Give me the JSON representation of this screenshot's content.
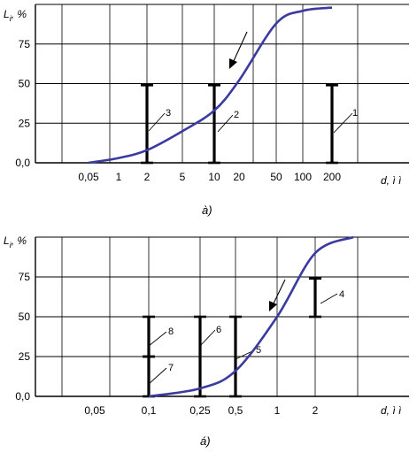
{
  "chart_data": [
    {
      "type": "line",
      "panel_label": "à)",
      "ylabel": "L",
      "ylabel_sub": "i",
      "ylabel_unit": ", %",
      "xlabel": "d, ì ì",
      "y_ticks": [
        "0,0",
        "25",
        "50",
        "75"
      ],
      "x_ticks": [
        "0,05",
        "1",
        "2",
        "5",
        "10",
        "20",
        "50",
        "100",
        "200"
      ],
      "ylim": [
        0,
        100
      ],
      "grid": true,
      "curve": {
        "x": [
          0.05,
          1,
          2,
          5,
          10,
          20,
          50,
          100,
          200
        ],
        "y": [
          0,
          3,
          8,
          20,
          33,
          52,
          88,
          96,
          98
        ]
      },
      "intervals": [
        {
          "label": "3",
          "x": 2,
          "y_low": 0,
          "y_high": 49
        },
        {
          "label": "2",
          "x": 10,
          "y_low": 0,
          "y_high": 49
        },
        {
          "label": "1",
          "x": 200,
          "y_low": 0,
          "y_high": 49
        }
      ]
    },
    {
      "type": "line",
      "panel_label": "á)",
      "ylabel": "L",
      "ylabel_sub": "i",
      "ylabel_unit": ", %",
      "xlabel": "d, ì ì",
      "y_ticks": [
        "0,0",
        "25",
        "50",
        "75"
      ],
      "x_ticks": [
        "0,05",
        "0,1",
        "0,25",
        "0,5",
        "1",
        "2"
      ],
      "ylim": [
        0,
        100
      ],
      "grid": true,
      "curve": {
        "x": [
          0.1,
          0.25,
          0.5,
          1,
          2,
          4
        ],
        "y": [
          0,
          5,
          16,
          50,
          90,
          100
        ]
      },
      "intervals": [
        {
          "label": "8",
          "x": 0.1,
          "y_low": 25,
          "y_high": 50
        },
        {
          "label": "7",
          "x": 0.1,
          "y_low": 0,
          "y_high": 25
        },
        {
          "label": "6",
          "x": 0.25,
          "y_low": 0,
          "y_high": 50
        },
        {
          "label": "5",
          "x": 0.5,
          "y_low": 0,
          "y_high": 50
        },
        {
          "label": "4",
          "x": 2,
          "y_low": 50,
          "y_high": 74
        }
      ]
    }
  ]
}
